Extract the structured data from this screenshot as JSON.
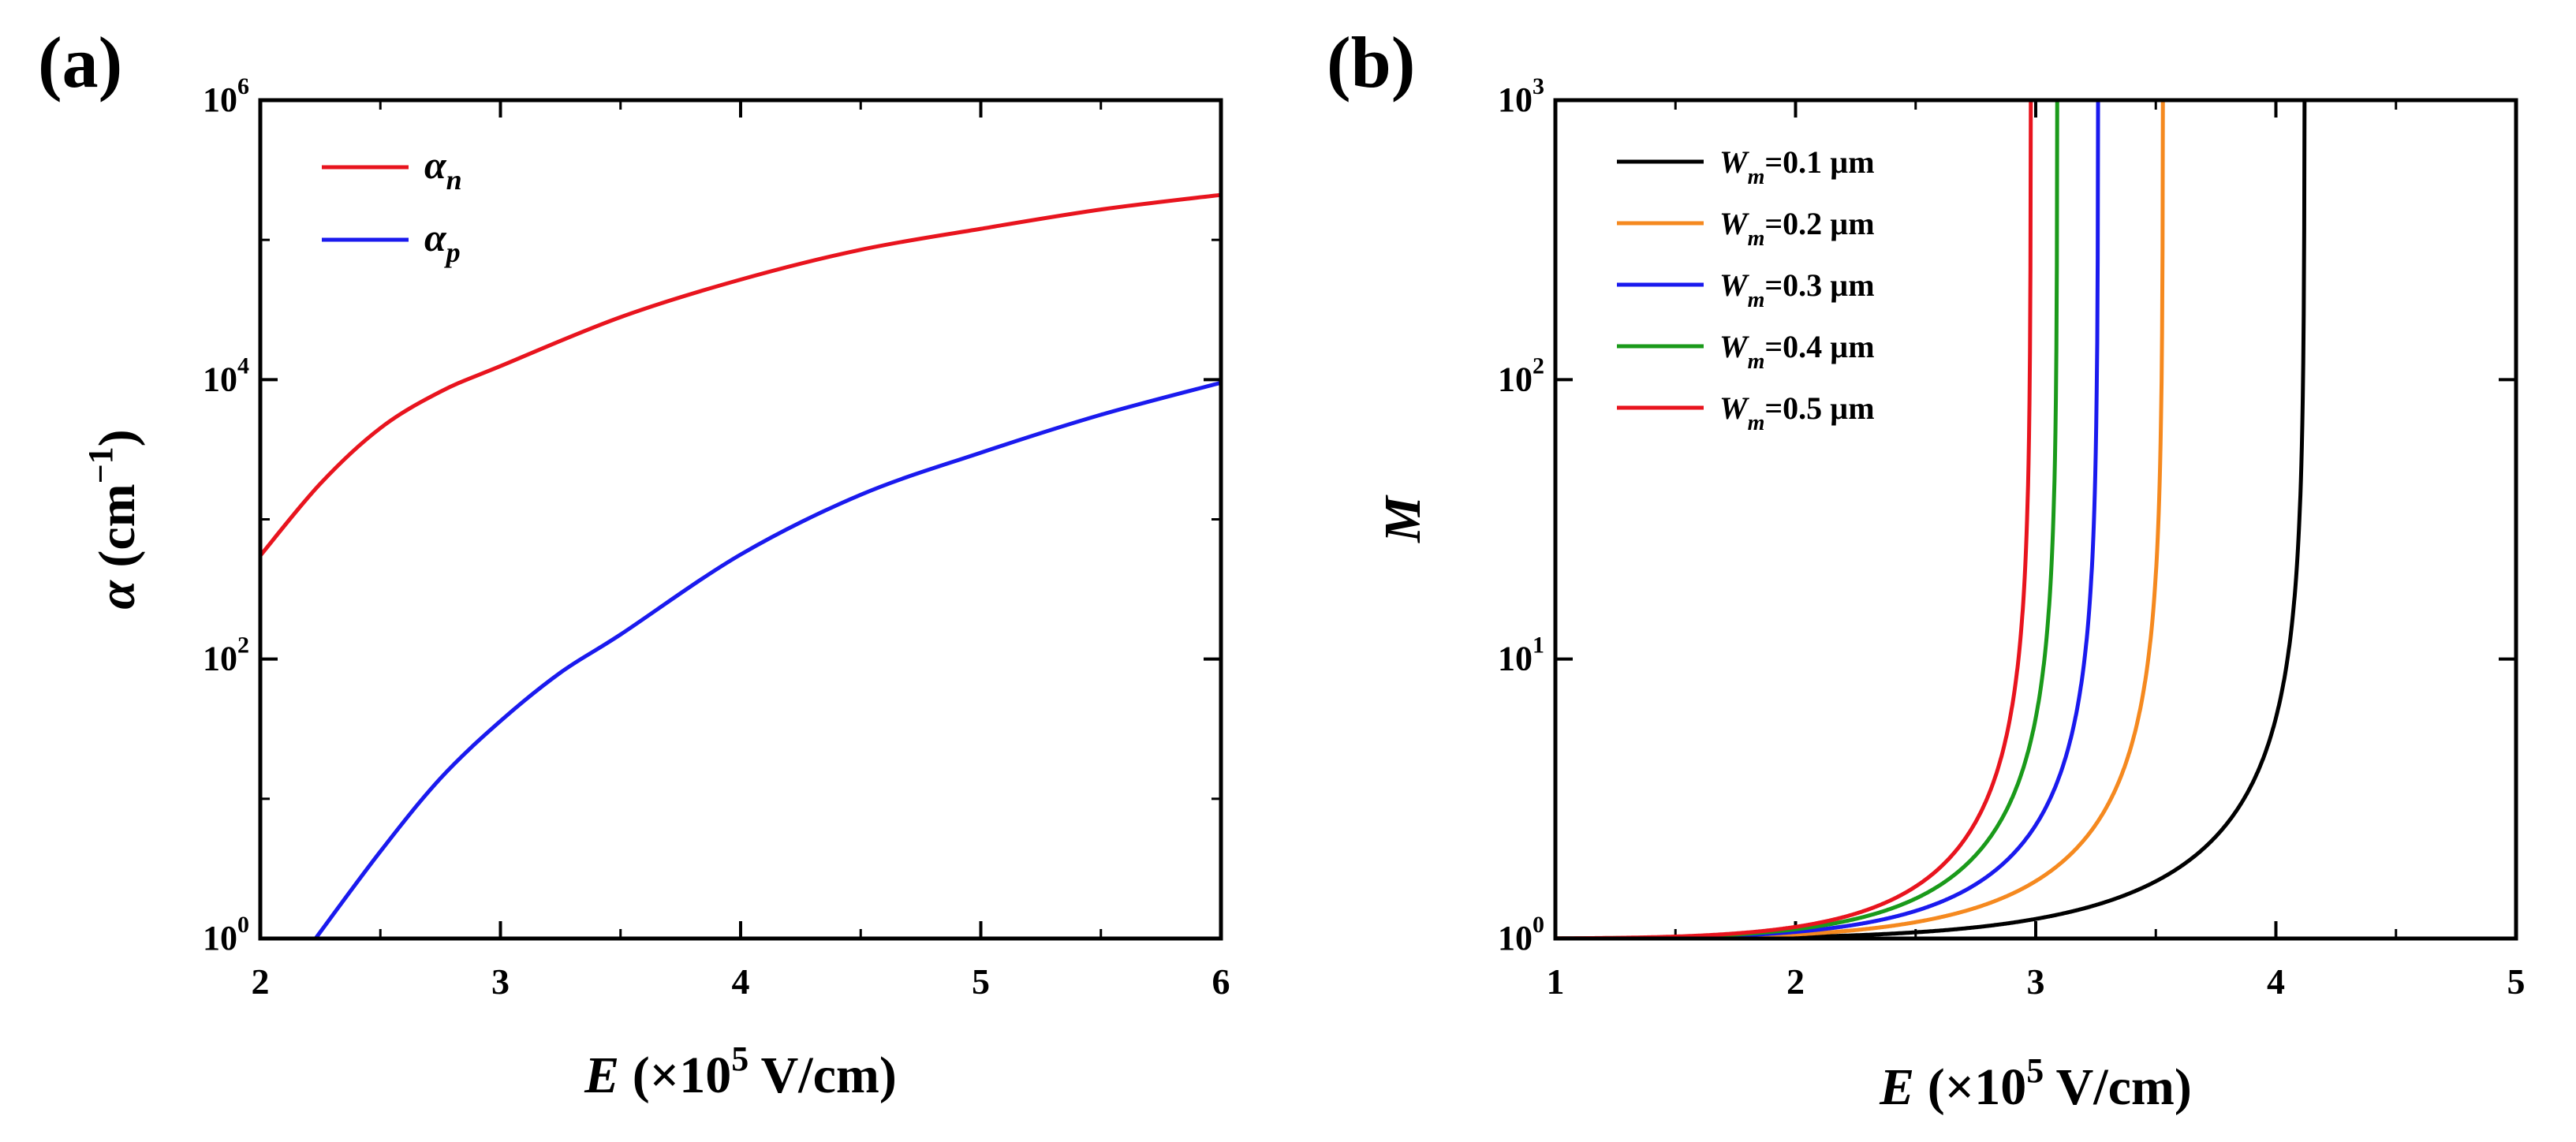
{
  "chart_data": [
    {
      "panel_label": "(a)",
      "type": "line",
      "xscale": "linear",
      "yscale": "log",
      "xlim": [
        2,
        6
      ],
      "ylim": [
        1,
        1000000
      ],
      "xticks": [
        "2",
        "3",
        "4",
        "5",
        "6"
      ],
      "yticks": [
        {
          "base": "10",
          "exp": "0",
          "value": 1
        },
        {
          "base": "10",
          "exp": "2",
          "value": 100
        },
        {
          "base": "10",
          "exp": "4",
          "value": 10000
        },
        {
          "base": "10",
          "exp": "6",
          "value": 1000000
        }
      ],
      "xlabel": {
        "var": "E",
        "pre": " (×10",
        "sup": "5",
        "post": " V/cm)"
      },
      "ylabel": {
        "var": "α",
        "pre": " (cm",
        "sup": "−1",
        "post": ")"
      },
      "legend_position": "top-left",
      "series": [
        {
          "name": "α_n",
          "symbol": "α",
          "sub": "n",
          "color": "#e8141e",
          "x": [
            2.0,
            2.25,
            2.5,
            2.75,
            3.0,
            3.5,
            4.0,
            4.5,
            5.0,
            5.5,
            6.0
          ],
          "y": [
            550,
            1800,
            4500,
            8200,
            12500,
            28000,
            52000,
            85000,
            120000,
            165000,
            210000
          ]
        },
        {
          "name": "α_p",
          "symbol": "α",
          "sub": "p",
          "color": "#1a1aee",
          "x": [
            2.23,
            2.5,
            2.75,
            3.0,
            3.25,
            3.5,
            4.0,
            4.5,
            5.0,
            5.5,
            6.0
          ],
          "y": [
            1.0,
            4.2,
            14,
            36,
            80,
            150,
            560,
            1500,
            3000,
            5600,
            9500
          ]
        }
      ]
    },
    {
      "panel_label": "(b)",
      "type": "line",
      "xscale": "linear",
      "yscale": "log",
      "xlim": [
        1,
        5
      ],
      "ylim": [
        1,
        1000
      ],
      "xticks": [
        "1",
        "2",
        "3",
        "4",
        "5"
      ],
      "yticks": [
        {
          "base": "10",
          "exp": "0",
          "value": 1
        },
        {
          "base": "10",
          "exp": "1",
          "value": 10
        },
        {
          "base": "10",
          "exp": "2",
          "value": 100
        },
        {
          "base": "10",
          "exp": "3",
          "value": 1000
        }
      ],
      "xlabel": {
        "var": "E",
        "pre": " (×10",
        "sup": "5",
        "post": " V/cm)"
      },
      "ylabel": {
        "var": "M",
        "pre": "",
        "sup": "",
        "post": ""
      },
      "legend_position": "top-left",
      "series": [
        {
          "name": "Wm=0.1 µm",
          "symbol": "W",
          "sub": "m",
          "rest": "=0.1 µm",
          "color": "#000000",
          "Ec": 4.12
        },
        {
          "name": "Wm=0.2 µm",
          "symbol": "W",
          "sub": "m",
          "rest": "=0.2 µm",
          "color": "#f5891f",
          "Ec": 3.53
        },
        {
          "name": "Wm=0.3 µm",
          "symbol": "W",
          "sub": "m",
          "rest": "=0.3 µm",
          "color": "#1a1aee",
          "Ec": 3.26
        },
        {
          "name": "Wm=0.4 µm",
          "symbol": "W",
          "sub": "m",
          "rest": "=0.4 µm",
          "color": "#1a9a1a",
          "Ec": 3.09
        },
        {
          "name": "Wm=0.5 µm",
          "symbol": "W",
          "sub": "m",
          "rest": "=0.5 µm",
          "color": "#e8141e",
          "Ec": 2.98
        }
      ]
    }
  ]
}
